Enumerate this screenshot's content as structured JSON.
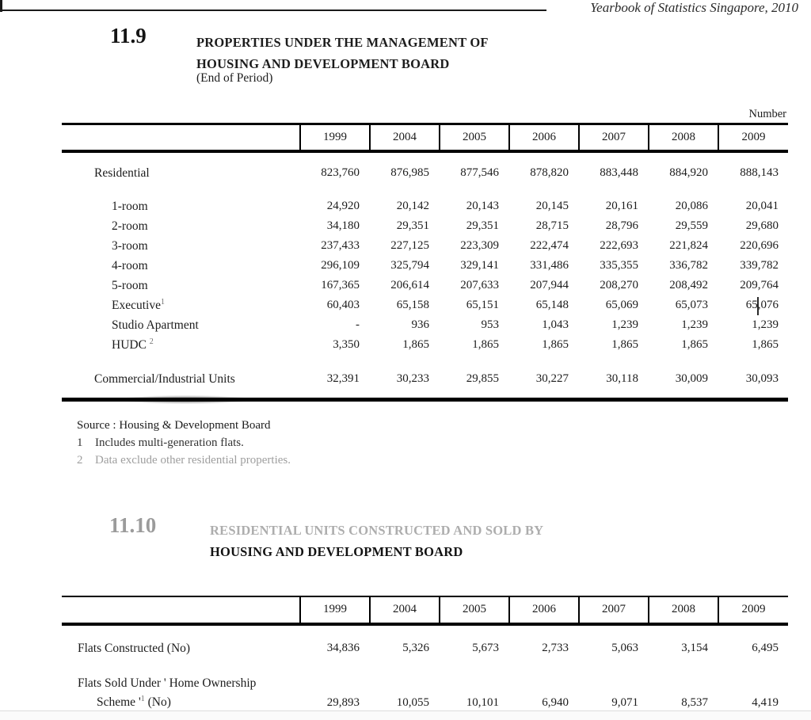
{
  "page_header": {
    "text": "Yearbook of Statistics Singapore, 2010"
  },
  "section1": {
    "number": "11.9",
    "title_line1": "PROPERTIES UNDER THE MANAGEMENT OF",
    "title_line2": "HOUSING AND DEVELOPMENT BOARD",
    "subtitle": "(End of Period)",
    "unit_label": "Number"
  },
  "table1": {
    "years": [
      "1999",
      "2004",
      "2005",
      "2006",
      "2007",
      "2008",
      "2009"
    ],
    "rows": [
      {
        "cls": "first",
        "indent": 0,
        "lines": [
          {
            "text": "Residential"
          }
        ],
        "values": [
          "823,760",
          "876,985",
          "877,546",
          "878,820",
          "883,448",
          "884,920",
          "888,143"
        ]
      },
      {
        "cls": "gap",
        "indent": 1,
        "lines": [
          {
            "text": "1-room"
          }
        ],
        "values": [
          "24,920",
          "20,142",
          "20,143",
          "20,145",
          "20,161",
          "20,086",
          "20,041"
        ]
      },
      {
        "indent": 1,
        "lines": [
          {
            "text": "2-room"
          }
        ],
        "values": [
          "34,180",
          "29,351",
          "29,351",
          "28,715",
          "28,796",
          "29,559",
          "29,680"
        ]
      },
      {
        "indent": 1,
        "lines": [
          {
            "text": "3-room"
          }
        ],
        "values": [
          "237,433",
          "227,125",
          "223,309",
          "222,474",
          "222,693",
          "221,824",
          "220,696"
        ]
      },
      {
        "indent": 1,
        "lines": [
          {
            "text": "4-room"
          }
        ],
        "values": [
          "296,109",
          "325,794",
          "329,141",
          "331,486",
          "335,355",
          "336,782",
          "339,782"
        ]
      },
      {
        "indent": 1,
        "lines": [
          {
            "text": "5-room"
          }
        ],
        "values": [
          "167,365",
          "206,614",
          "207,633",
          "207,944",
          "208,270",
          "208,492",
          "209,764"
        ]
      },
      {
        "indent": 1,
        "lines": [
          {
            "text": "Executive",
            "sup": "1"
          }
        ],
        "values": [
          "60,403",
          "65,158",
          "65,151",
          "65,148",
          "65,069",
          "65,073",
          "65,076"
        ]
      },
      {
        "indent": 1,
        "lines": [
          {
            "text": "Studio Apartment"
          }
        ],
        "values": [
          "-",
          "936",
          "953",
          "1,043",
          "1,239",
          "1,239",
          "1,239"
        ]
      },
      {
        "indent": 1,
        "lines": [
          {
            "text": "HUDC ",
            "sup": "2"
          }
        ],
        "values": [
          "3,350",
          "1,865",
          "1,865",
          "1,865",
          "1,865",
          "1,865",
          "1,865"
        ]
      },
      {
        "cls": "last",
        "indent": 0,
        "lines": [
          {
            "text": "Commercial/Industrial Units"
          }
        ],
        "values": [
          "32,391",
          "30,233",
          "29,855",
          "30,227",
          "30,118",
          "30,009",
          "30,093"
        ]
      }
    ]
  },
  "notes": {
    "source": "Source : Housing & Development Board",
    "note1_marker": "1",
    "note1_text": "Includes multi-generation flats.",
    "note2_marker": "2",
    "note2_text": "Data exclude other residential properties."
  },
  "section2": {
    "number": "11.10",
    "title_line1": "RESIDENTIAL UNITS CONSTRUCTED AND SOLD BY",
    "title_line2": "HOUSING AND DEVELOPMENT BOARD"
  },
  "table2": {
    "years": [
      "1999",
      "2004",
      "2005",
      "2006",
      "2007",
      "2008",
      "2009"
    ],
    "rows": [
      {
        "cls": "first2",
        "lines": [
          {
            "text": "Flats Constructed (No)"
          }
        ],
        "values": [
          "34,836",
          "5,326",
          "5,673",
          "2,733",
          "5,063",
          "3,154",
          "6,495"
        ]
      },
      {
        "cls": "two",
        "lines": [
          {
            "text": "Flats Sold Under ' Home Ownership"
          },
          {
            "text": "Scheme '",
            "sup": "1",
            "post": " (No)"
          }
        ],
        "values": [
          "29,893",
          "10,055",
          "10,101",
          "6,940",
          "9,071",
          "8,537",
          "4,419"
        ]
      }
    ]
  },
  "colors": {
    "text": "#1c1c1c",
    "muted_gray": "#9e9e9e",
    "faded_heading": "#adadad",
    "rule_black": "#000000"
  }
}
